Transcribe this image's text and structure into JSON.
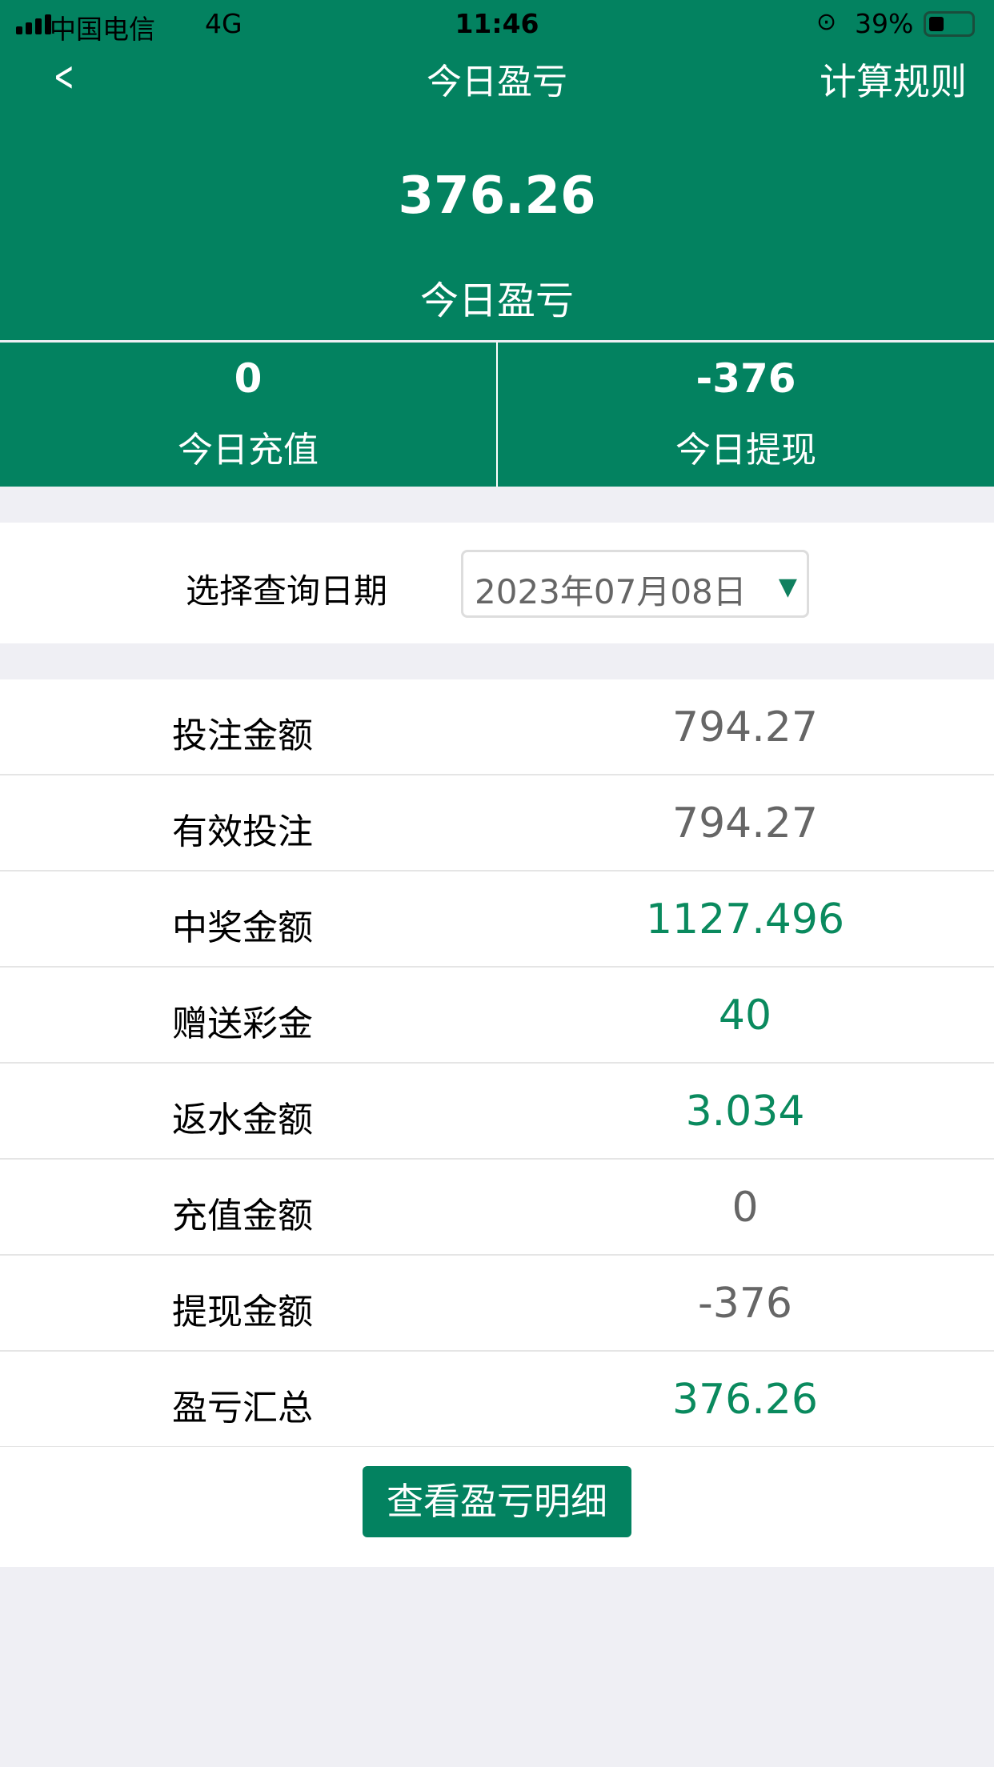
{
  "status_bar": {
    "carrier": "中国电信",
    "network": "4G",
    "time": "11:46",
    "battery": "39%"
  },
  "nav": {
    "title": "今日盈亏",
    "right_label": "计算规则",
    "back_icon": "chevron-left"
  },
  "summary": {
    "value": "376.26",
    "label": "今日盈亏"
  },
  "stats": [
    {
      "value": "0",
      "label": "今日充值"
    },
    {
      "value": "-376",
      "label": "今日提现"
    }
  ],
  "date_filter": {
    "label": "选择查询日期",
    "value": "2023年07月08日",
    "arrow": "▼"
  },
  "rows": [
    {
      "label": "投注金额",
      "value": "794.27",
      "color": "#666666"
    },
    {
      "label": "有效投注",
      "value": "794.27",
      "color": "#666666"
    },
    {
      "label": "中奖金额",
      "value": "1127.496",
      "color": "#0a8a5e"
    },
    {
      "label": "赠送彩金",
      "value": "40",
      "color": "#0a8a5e"
    },
    {
      "label": "返水金额",
      "value": "3.034",
      "color": "#0a8a5e"
    },
    {
      "label": "充值金额",
      "value": "0",
      "color": "#666666"
    },
    {
      "label": "提现金额",
      "value": "-376",
      "color": "#666666"
    },
    {
      "label": "盈亏汇总",
      "value": "376.26",
      "color": "#0a8a5e"
    }
  ],
  "detail_button": "查看盈亏明细",
  "colors": {
    "brand": "#038260"
  }
}
